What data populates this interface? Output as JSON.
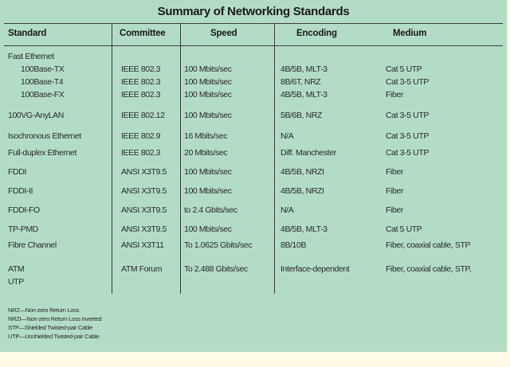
{
  "title": "Summary of Networking Standards",
  "headers": {
    "standard": "Standard",
    "committee": "Committee",
    "speed": "Speed",
    "encoding": "Encoding",
    "medium": "Medium"
  },
  "rows": [
    {
      "standard": "Fast Ethernet",
      "committee": "",
      "speed": "",
      "encoding": "",
      "medium": ""
    },
    {
      "standard": "100Base-TX",
      "committee": "IEEE 802.3",
      "speed": "100 Mbits/sec",
      "encoding": "4B/5B, MLT-3",
      "medium": "Cat 5 UTP"
    },
    {
      "standard": "100Base-T4",
      "committee": "IEEE 802.3",
      "speed": "100 Mbits/sec",
      "encoding": "8B/6T, NRZ",
      "medium": "Cat 3-5 UTP"
    },
    {
      "standard": "100Base-FX",
      "committee": "IEEE 802.3",
      "speed": "100 Mbits/sec",
      "encoding": "4B/5B, MLT-3",
      "medium": "Fiber"
    },
    {
      "standard": "100VG-AnyLAN",
      "committee": "IEEE 802.12",
      "speed": "100 Mbits/sec",
      "encoding": "5B/6B, NRZ",
      "medium": "Cat 3-5 UTP"
    },
    {
      "standard": "Isochronous Ethernet",
      "committee": "IEEE 802.9",
      "speed": "16 Mbits/sec",
      "encoding": "N/A",
      "medium": "Cat 3-5 UTP"
    },
    {
      "standard": "Full-duplex Ethernet",
      "committee": "IEEE 802.3",
      "speed": "20 Mbits/sec",
      "encoding": "Diff. Manchester",
      "medium": "Cat 3-5 UTP"
    },
    {
      "standard": "FDDI",
      "committee": "ANSI X3T9.5",
      "speed": "100 Mbits/sec",
      "encoding": "4B/5B, NRZI",
      "medium": "Fiber"
    },
    {
      "standard": "FDDI-II",
      "committee": "ANSI X3T9.5",
      "speed": "100 Mbits/sec",
      "encoding": "4B/5B, NRZI",
      "medium": "Fiber"
    },
    {
      "standard": "FDDI-FO",
      "committee": "ANSI X3T9.5",
      "speed": "to 2.4 Gbits/sec",
      "encoding": "N/A",
      "medium": "Fiber"
    },
    {
      "standard": "TP-PMD",
      "committee": "ANSI X3T9.5",
      "speed": "100 Mbits/sec",
      "encoding": "4B/5B, MLT-3",
      "medium": "Cat 5 UTP"
    },
    {
      "standard": "Fibre Channel",
      "committee": "ANSI X3T11",
      "speed": "To 1.0625 Gbits/sec",
      "encoding": "8B/10B",
      "medium": "Fiber, coaxial cable, STP"
    },
    {
      "standard": "ATM",
      "committee": "ATM Forum",
      "speed": "To 2.488 Gbits/sec",
      "encoding": "Interface-dependent",
      "medium": "Fiber, coaxial cable, STP,"
    },
    {
      "standard": "UTP",
      "committee": "",
      "speed": "",
      "encoding": "",
      "medium": ""
    }
  ],
  "footnotes": [
    "NRZ—Non-zero Return Loss",
    "NRZI—Non-zero Return Loss Inverted",
    "STP—Shielded Twisted-pair Cable",
    "UTP—Unshielded Twisted-pair Cable"
  ],
  "colors": {
    "panel": "#b3dcc6",
    "page": "#fffbe6",
    "rule": "#3c3c3c"
  }
}
